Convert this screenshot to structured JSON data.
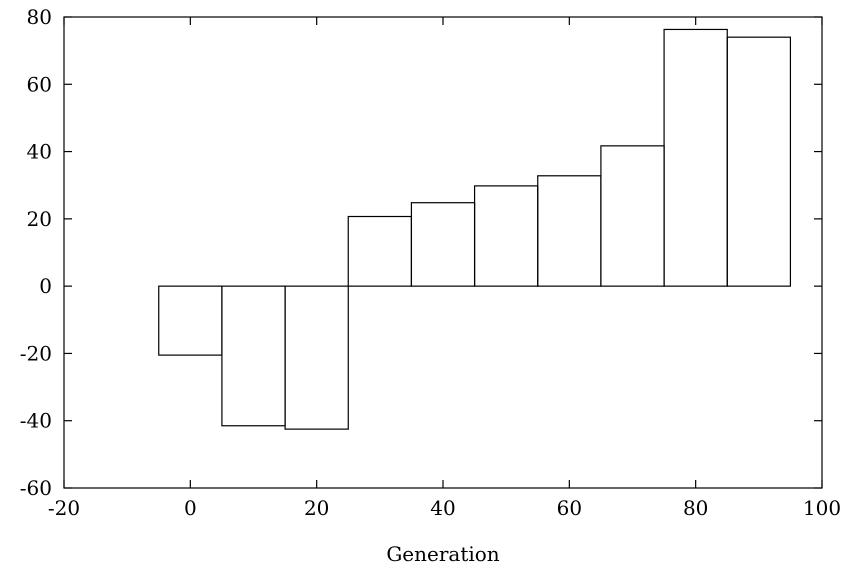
{
  "chart_data": {
    "type": "bar",
    "title": "",
    "xlabel": "Generation",
    "ylabel": "",
    "xlim": [
      -20,
      100
    ],
    "ylim": [
      -60,
      80
    ],
    "grid": false,
    "bar_width": 10,
    "x": [
      0,
      10,
      20,
      30,
      40,
      50,
      60,
      70,
      80,
      90
    ],
    "values": [
      -20.5,
      -41.5,
      -42.5,
      20.7,
      24.8,
      29.8,
      32.8,
      41.7,
      76.3,
      74.0
    ],
    "xticks": [
      "-20",
      "0",
      "20",
      "40",
      "60",
      "80",
      "100"
    ],
    "yticks": [
      "80",
      "60",
      "40",
      "20",
      "0",
      "-20",
      "-40",
      "-60"
    ]
  }
}
